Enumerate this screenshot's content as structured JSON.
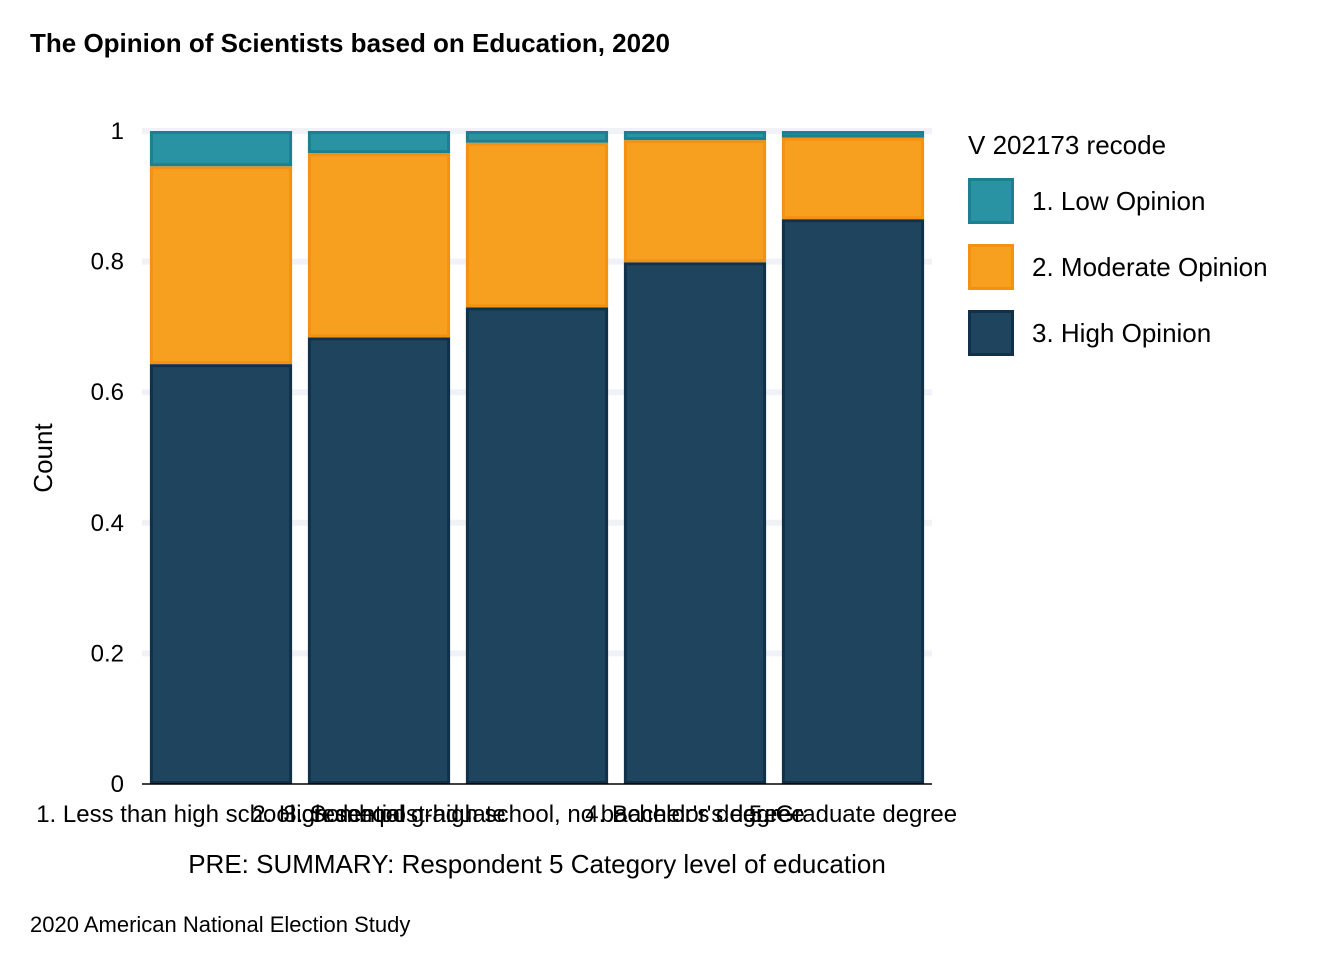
{
  "title": "The Opinion of Scientists based on Education, 2020",
  "caption": "2020 American National Election Study",
  "legend": {
    "title": "V 202173 recode",
    "items": [
      {
        "label": "1. Low Opinion",
        "fill": "#2a93a3",
        "stroke": "#1d7f8f"
      },
      {
        "label": "2. Moderate Opinion",
        "fill": "#f79f1f",
        "stroke": "#f39212"
      },
      {
        "label": "3. High Opinion",
        "fill": "#1f455e",
        "stroke": "#11314a"
      }
    ]
  },
  "chart_data": {
    "type": "bar",
    "stacked": true,
    "title": "The Opinion of Scientists based on Education, 2020",
    "xlabel": "PRE: SUMMARY: Respondent 5 Category level of education",
    "ylabel": "Count",
    "ylim": [
      0,
      1
    ],
    "yticks": [
      0,
      0.2,
      0.4,
      0.6,
      0.8,
      1
    ],
    "ytick_labels": [
      "0",
      "0.2",
      "0.4",
      "0.6",
      "0.8",
      "1"
    ],
    "grid": true,
    "legend_position": "right",
    "categories": [
      "1. Less than high school credential",
      "2. High school graduate",
      "3. Some post-high school, no bachelor's degree",
      "4. Bachelor's degree",
      "5. Graduate degree"
    ],
    "series": [
      {
        "name": "3. High Opinion",
        "values": [
          0.643,
          0.684,
          0.73,
          0.799,
          0.865
        ]
      },
      {
        "name": "2. Moderate Opinion",
        "values": [
          0.303,
          0.282,
          0.252,
          0.187,
          0.125
        ]
      },
      {
        "name": "1. Low Opinion",
        "values": [
          0.054,
          0.034,
          0.018,
          0.014,
          0.01
        ]
      }
    ]
  }
}
